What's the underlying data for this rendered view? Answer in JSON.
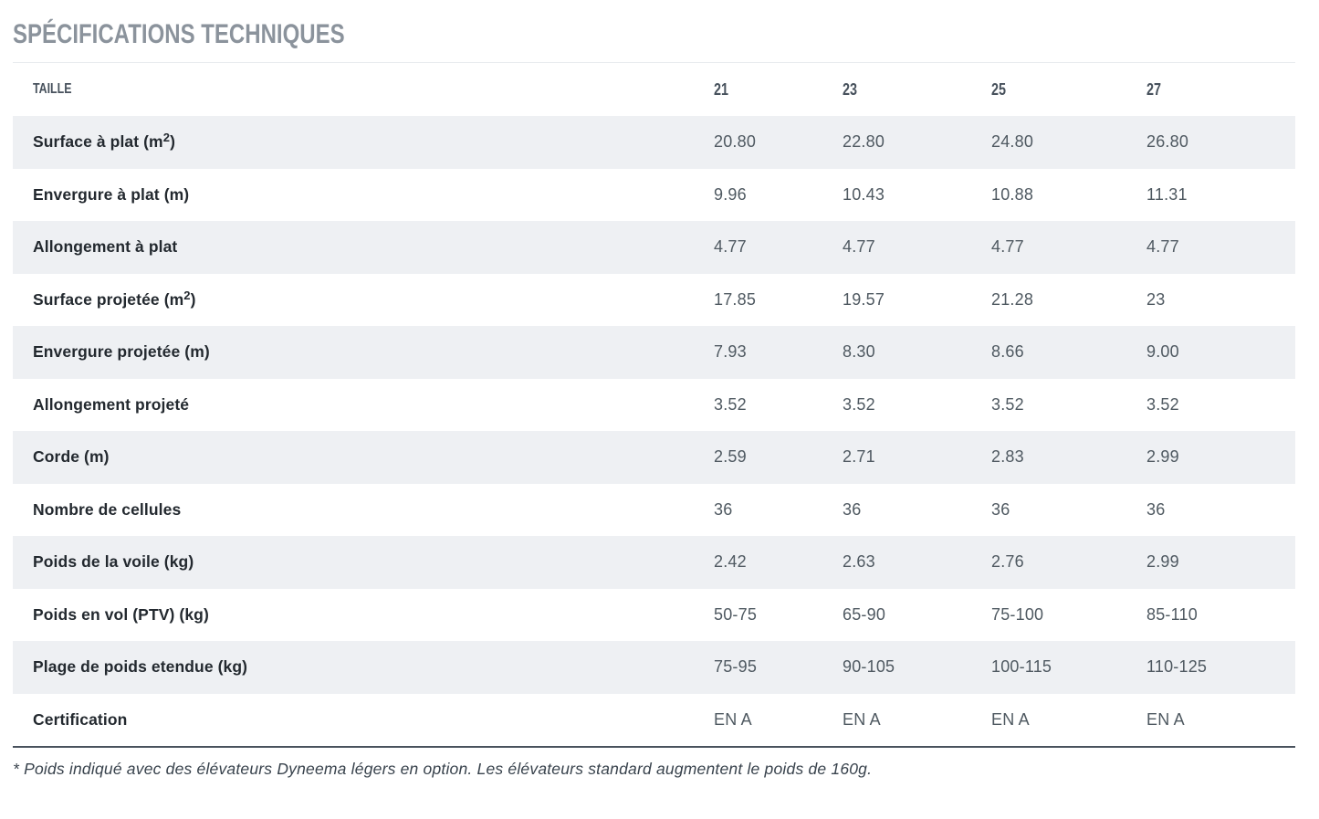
{
  "page": {
    "title": "SPÉCIFICATIONS TECHNIQUES",
    "footnote": "* Poids indiqué avec des élévateurs Dyneema légers en option. Les élévateurs standard augmentent le poids de 160g."
  },
  "table": {
    "header": {
      "label": "TAILLE",
      "sizes": [
        "21",
        "23",
        "25",
        "27"
      ]
    },
    "rows": [
      {
        "label": "Surface à plat (m²)",
        "values": [
          "20.80",
          "22.80",
          "24.80",
          "26.80"
        ]
      },
      {
        "label": "Envergure à plat (m)",
        "values": [
          "9.96",
          "10.43",
          "10.88",
          "11.31"
        ]
      },
      {
        "label": "Allongement à plat",
        "values": [
          "4.77",
          "4.77",
          "4.77",
          "4.77"
        ]
      },
      {
        "label": "Surface projetée (m²)",
        "values": [
          "17.85",
          "19.57",
          "21.28",
          "23"
        ]
      },
      {
        "label": "Envergure projetée (m)",
        "values": [
          "7.93",
          "8.30",
          "8.66",
          "9.00"
        ]
      },
      {
        "label": "Allongement projeté",
        "values": [
          "3.52",
          "3.52",
          "3.52",
          "3.52"
        ]
      },
      {
        "label": "Corde (m)",
        "values": [
          "2.59",
          "2.71",
          "2.83",
          "2.99"
        ]
      },
      {
        "label": "Nombre de cellules",
        "values": [
          "36",
          "36",
          "36",
          "36"
        ]
      },
      {
        "label": "Poids de la voile (kg)",
        "values": [
          "2.42",
          "2.63",
          "2.76",
          "2.99"
        ]
      },
      {
        "label": "Poids en vol (PTV) (kg)",
        "values": [
          "50-75",
          "65-90",
          "75-100",
          "85-110"
        ]
      },
      {
        "label": "Plage de poids etendue (kg)",
        "values": [
          "75-95",
          "90-105",
          "100-115",
          "110-125"
        ]
      },
      {
        "label": "Certification",
        "values": [
          "EN A",
          "EN A",
          "EN A",
          "EN A"
        ]
      }
    ]
  },
  "colors": {
    "title": "#8b939c",
    "header_text": "#47515c",
    "row_label": "#23292f",
    "row_value": "#4f5961",
    "stripe": "#eef0f3",
    "top_border": "#e8ebee",
    "bottom_rule": "#49525d",
    "footnote": "#39434d"
  }
}
